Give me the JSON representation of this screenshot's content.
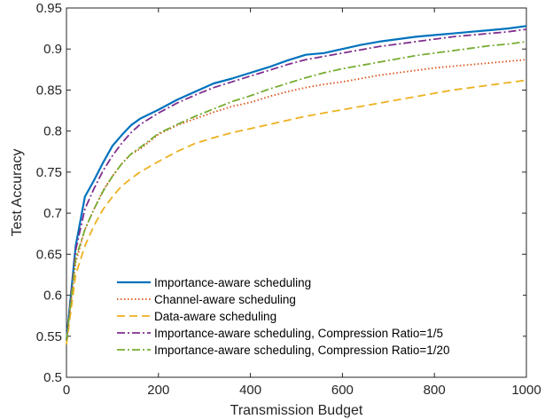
{
  "chart_data": {
    "type": "line",
    "title": "",
    "xlabel": "Transmission Budget",
    "ylabel": "Test Accuracy",
    "xlim": [
      0,
      1000
    ],
    "ylim": [
      0.5,
      0.95
    ],
    "xticks": [
      0,
      200,
      400,
      600,
      800,
      1000
    ],
    "xtick_labels": [
      "0",
      "200",
      "400",
      "600",
      "800",
      "1000"
    ],
    "yticks": [
      0.5,
      0.55,
      0.6,
      0.65,
      0.7,
      0.75,
      0.8,
      0.85,
      0.9,
      0.95
    ],
    "ytick_labels": [
      "0.5",
      "0.55",
      "0.6",
      "0.65",
      "0.7",
      "0.75",
      "0.8",
      "0.85",
      "0.9",
      "0.95"
    ],
    "grid": false,
    "legend_position": "bottom-left",
    "series": [
      {
        "name": "Importance-aware scheduling",
        "color": "#0072BD",
        "dash": "solid",
        "x": [
          0,
          20,
          40,
          60,
          80,
          100,
          120,
          140,
          160,
          200,
          240,
          280,
          320,
          360,
          400,
          440,
          480,
          520,
          560,
          600,
          640,
          680,
          720,
          760,
          800,
          840,
          880,
          920,
          960,
          1000
        ],
        "y": [
          0.545,
          0.66,
          0.72,
          0.74,
          0.762,
          0.782,
          0.795,
          0.807,
          0.815,
          0.826,
          0.838,
          0.848,
          0.858,
          0.864,
          0.871,
          0.878,
          0.886,
          0.893,
          0.895,
          0.9,
          0.905,
          0.909,
          0.912,
          0.915,
          0.917,
          0.919,
          0.921,
          0.923,
          0.925,
          0.928
        ]
      },
      {
        "name": "Channel-aware scheduling",
        "color": "#D95319",
        "dash": "dotted",
        "x": [
          0,
          20,
          40,
          60,
          80,
          100,
          120,
          140,
          160,
          200,
          240,
          280,
          320,
          360,
          400,
          440,
          480,
          520,
          560,
          600,
          640,
          680,
          720,
          760,
          800,
          840,
          880,
          920,
          960,
          1000
        ],
        "y": [
          0.545,
          0.64,
          0.68,
          0.705,
          0.728,
          0.745,
          0.76,
          0.772,
          0.778,
          0.796,
          0.807,
          0.815,
          0.823,
          0.83,
          0.835,
          0.842,
          0.848,
          0.853,
          0.857,
          0.86,
          0.864,
          0.868,
          0.871,
          0.874,
          0.877,
          0.879,
          0.881,
          0.883,
          0.885,
          0.887
        ]
      },
      {
        "name": "Data-aware scheduling",
        "color": "#EDB120",
        "dash": "dashed",
        "x": [
          0,
          20,
          40,
          60,
          80,
          100,
          120,
          140,
          160,
          200,
          240,
          280,
          320,
          360,
          400,
          440,
          480,
          520,
          560,
          600,
          640,
          680,
          720,
          760,
          800,
          840,
          880,
          920,
          960,
          1000
        ],
        "y": [
          0.54,
          0.625,
          0.66,
          0.685,
          0.705,
          0.72,
          0.733,
          0.742,
          0.75,
          0.763,
          0.775,
          0.785,
          0.792,
          0.798,
          0.803,
          0.808,
          0.813,
          0.818,
          0.822,
          0.826,
          0.83,
          0.834,
          0.838,
          0.842,
          0.846,
          0.85,
          0.853,
          0.856,
          0.859,
          0.862
        ]
      },
      {
        "name": "Importance-aware scheduling, Compression Ratio=1/5",
        "color": "#7E2F8E",
        "dash": "dashdot",
        "x": [
          0,
          20,
          40,
          60,
          80,
          100,
          120,
          140,
          160,
          200,
          240,
          280,
          320,
          360,
          400,
          440,
          480,
          520,
          560,
          600,
          640,
          680,
          720,
          760,
          800,
          840,
          880,
          920,
          960,
          1000
        ],
        "y": [
          0.545,
          0.655,
          0.705,
          0.73,
          0.752,
          0.77,
          0.785,
          0.798,
          0.808,
          0.822,
          0.834,
          0.844,
          0.853,
          0.86,
          0.867,
          0.874,
          0.881,
          0.887,
          0.891,
          0.895,
          0.899,
          0.903,
          0.906,
          0.909,
          0.912,
          0.915,
          0.917,
          0.919,
          0.921,
          0.924
        ]
      },
      {
        "name": "Importance-aware scheduling, Compression Ratio=1/20",
        "color": "#77AC30",
        "dash": "dashdot",
        "x": [
          0,
          20,
          40,
          60,
          80,
          100,
          120,
          140,
          160,
          200,
          240,
          280,
          320,
          360,
          400,
          440,
          480,
          520,
          560,
          600,
          640,
          680,
          720,
          760,
          800,
          840,
          880,
          920,
          960,
          1000
        ],
        "y": [
          0.545,
          0.645,
          0.68,
          0.705,
          0.727,
          0.745,
          0.76,
          0.772,
          0.78,
          0.797,
          0.808,
          0.818,
          0.827,
          0.836,
          0.843,
          0.851,
          0.858,
          0.865,
          0.871,
          0.876,
          0.88,
          0.884,
          0.888,
          0.892,
          0.895,
          0.898,
          0.901,
          0.904,
          0.906,
          0.909
        ]
      }
    ]
  }
}
